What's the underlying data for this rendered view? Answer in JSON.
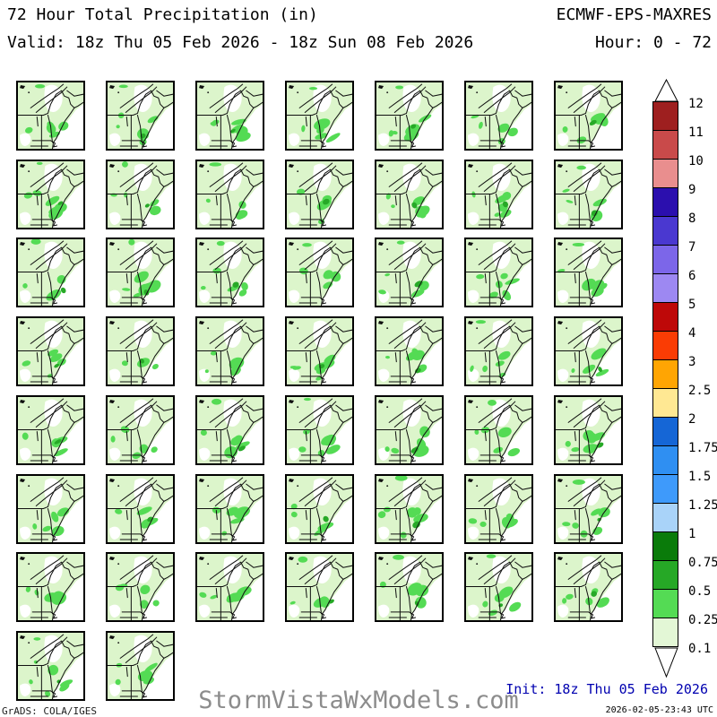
{
  "header": {
    "title": "72 Hour Total Precipitation (in)",
    "model": "ECMWF-EPS-MAXRES",
    "valid": "Valid: 18z Thu 05 Feb 2026 - 18z Sun 08 Feb 2026",
    "hour": "Hour: 0 - 72"
  },
  "colorbar": {
    "labels": [
      "12",
      "11",
      "10",
      "9",
      "8",
      "7",
      "6",
      "5",
      "4",
      "3",
      "2.5",
      "2",
      "1.75",
      "1.5",
      "1.25",
      "1",
      "0.75",
      "0.5",
      "0.25",
      "0.1"
    ],
    "segment_colors": [
      "#9E1F1F",
      "#C94A4A",
      "#E98E8E",
      "#2B0FAE",
      "#4A38D0",
      "#7C66E9",
      "#9D88F2",
      "#BE0808",
      "#FA3C04",
      "#FFA503",
      "#FFE893",
      "#1566D6",
      "#2F8FF2",
      "#3E9AFB",
      "#A9D3F9",
      "#0A7B0A",
      "#26A826",
      "#54DB54",
      "#E3F7D6"
    ]
  },
  "grid": {
    "rows": 8,
    "cols": 7,
    "member_count": 51,
    "members": [
      1,
      2,
      3,
      4,
      5,
      6,
      7,
      8,
      9,
      10,
      11,
      12,
      13,
      14,
      15,
      16,
      17,
      18,
      19,
      20,
      21,
      22,
      23,
      24,
      25,
      26,
      27,
      28,
      29,
      30,
      31,
      32,
      33,
      34,
      35,
      36,
      37,
      38,
      39,
      40,
      41,
      42,
      43,
      44,
      45,
      46,
      47,
      48,
      49,
      50,
      51
    ]
  },
  "map_colors": {
    "rain_light": "#DCF5CB",
    "rain_medium": "#54DB54",
    "rain_heavy": "#27A927",
    "no_precip": "#ffffff",
    "border": "#111111"
  },
  "footer": {
    "grads": "GrADS: COLA/IGES",
    "watermark": "StormVistaWxModels.com",
    "init": "Init: 18z Thu 05 Feb 2026",
    "timestamp": "2026-02-05-23:43 UTC"
  }
}
